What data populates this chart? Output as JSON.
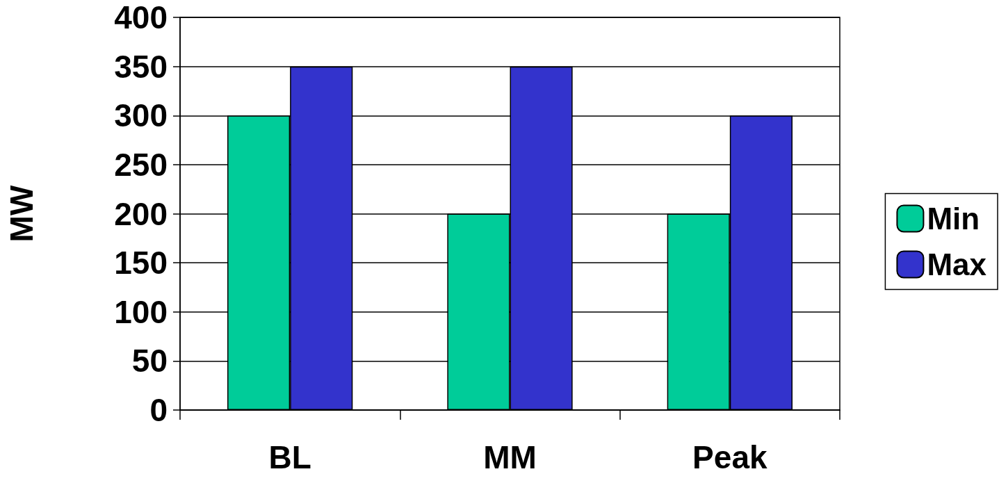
{
  "chart_data": {
    "type": "bar",
    "ylabel": "MW",
    "categories": [
      "BL",
      "MM",
      "Peak"
    ],
    "series": [
      {
        "name": "Min",
        "color": "#00cc99",
        "values": [
          300,
          200,
          200
        ]
      },
      {
        "name": "Max",
        "color": "#3333cc",
        "values": [
          350,
          350,
          300
        ]
      }
    ],
    "ylim": [
      0,
      400
    ],
    "yticks": [
      0,
      50,
      100,
      150,
      200,
      250,
      300,
      350,
      400
    ],
    "grid": "y",
    "legend": "right"
  }
}
